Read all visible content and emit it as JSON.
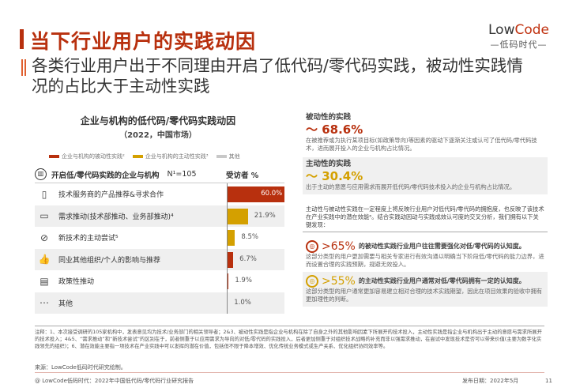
{
  "header": {
    "title": "当下行业用户的实践动因",
    "subtitle": "各类行业用户出于不同理由开启了低代码/零代码实践，被动性实践情况的占比大于主动性实践",
    "logo_top_a": "Low",
    "logo_top_b": "Code",
    "logo_bottom": "—低码时代—"
  },
  "colors": {
    "passive": "#b8300e",
    "active": "#d4a000",
    "other": "#c8c8c8"
  },
  "chart_data": {
    "type": "bar",
    "title": "企业与机构的低代码/零代码实践动因",
    "subtitle": "（2022，中国市场）",
    "legend": [
      "企业与机构的被动性实践²",
      "企业与机构的主动性实践³",
      "其他"
    ],
    "header_label": "开启低/零代码实践的企业与机构",
    "n_label": "N¹=105",
    "value_header": "受访者 %",
    "categories": [
      "技术服务商的产品推荐&寻求合作",
      "需求推动(技术部推动、业务部推动)⁴",
      "新技术的主动尝试⁵",
      "同业其他组织/个人的影响与推荐",
      "政策性推动",
      "其他"
    ],
    "values": [
      60.0,
      21.9,
      8.5,
      6.7,
      1.9,
      1.0
    ],
    "labels": [
      "60.0%",
      "21.9%",
      "8.5%",
      "6.7%",
      "1.9%",
      "1.0%"
    ],
    "series_type": [
      "passive",
      "active",
      "active",
      "passive",
      "passive",
      "other"
    ],
    "icons": [
      "building-phone-icon",
      "monitor-icon",
      "compass-icon",
      "thumbs-up-icon",
      "document-icon",
      "more-icon"
    ]
  },
  "right": {
    "passive": {
      "title": "被动性的实践",
      "value": "～ 68.6%",
      "desc": "在被推荐或为执行某项目标(如政策导向)等因素的驱动下逐渐关注或认可了低代码/零代码技术，进而展开投入的企业与机构占比情况。"
    },
    "active": {
      "title": "主动性的实践",
      "value": "～ 30.4%",
      "desc": "出于主动的意愿与应用需求而展开低代码/零代码技术投入的企业与机构占比情况。"
    },
    "intro": "主动性与被动性实践在一定程度上将反映行业用户对低代码/零代码的拥抱度，也反映了该技术在产业实践中的潜在效能⁶。结合实践动因动与实践成效认可度的交叉分析，我们拥有以下关键发现：",
    "finding1": {
      "pct": ">65%",
      "head": "的被动性实践行业用户往往需要强化对低/零代码的认知度。",
      "desc": "这部分类型的用户更加需要与相关专家进行有效沟通以明确当下阶段低/零代码的能力边界，进而设置合理的实践预期，规避无效投入。"
    },
    "finding2": {
      "pct": ">55%",
      "head": "的主动性实践行业用户通常对低/零代码拥有一定的认知度。",
      "desc": "这部分类型的用户通常更加容易建立相对合理的技术实践期望，因此在项目效果的验收中拥有更加理性的判断。"
    }
  },
  "notes": "注释：1、本次接受调研的105家机构中，发表意见均为技术/业务部门的相关领导者；2&3、被动性实践是指企业与机构在除了自身之外的其他影响因素下所展开的技术投入，主动性实践是指企业与机构出于主动的意愿与需求所展开的技术投入；4&5、“需求推动”和“新技术尝试”的区别在于，前者侧重于以应用需求为导向的对低/零代码的实践投入，后者更加侧重于对组织技术战略的补充而非以强需求推动，在尝试中发现技术是否可以带来价值(主要为数字化实践领先的组织)；6、潜在效能主要指一项技术在产业实践中可以发挥的潜在价值，包括但不限于降本增效、优化传统业务模式或生产关系、优化组织协同效率等。",
  "source": "来源：LowCode低码时代研究绘制。",
  "footer": {
    "left": "@ LowCode低码时代：2022年中国低代码/零代码行业研究报告",
    "date": "发布日期：2022年5月",
    "page": "11"
  }
}
